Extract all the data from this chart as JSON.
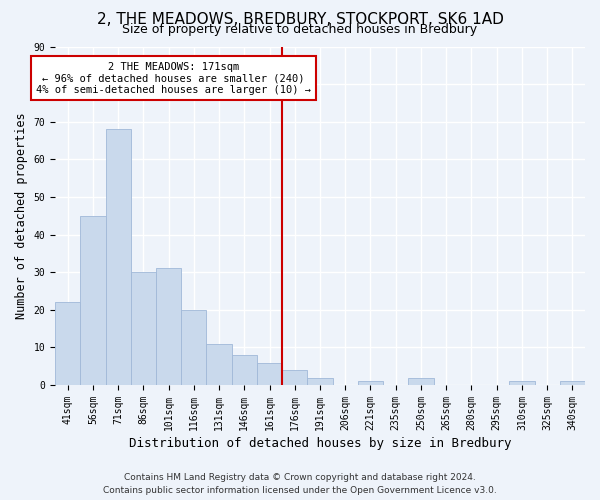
{
  "title": "2, THE MEADOWS, BREDBURY, STOCKPORT, SK6 1AD",
  "subtitle": "Size of property relative to detached houses in Bredbury",
  "xlabel": "Distribution of detached houses by size in Bredbury",
  "ylabel": "Number of detached properties",
  "bar_labels": [
    "41sqm",
    "56sqm",
    "71sqm",
    "86sqm",
    "101sqm",
    "116sqm",
    "131sqm",
    "146sqm",
    "161sqm",
    "176sqm",
    "191sqm",
    "206sqm",
    "221sqm",
    "235sqm",
    "250sqm",
    "265sqm",
    "280sqm",
    "295sqm",
    "310sqm",
    "325sqm",
    "340sqm"
  ],
  "bar_values": [
    22,
    45,
    68,
    30,
    31,
    20,
    11,
    8,
    6,
    4,
    2,
    0,
    1,
    0,
    2,
    0,
    0,
    0,
    1,
    0,
    1
  ],
  "bar_color": "#c9d9ec",
  "bar_edge_color": "#a0b8d8",
  "vline_color": "#cc0000",
  "annotation_title": "2 THE MEADOWS: 171sqm",
  "annotation_line1": "← 96% of detached houses are smaller (240)",
  "annotation_line2": "4% of semi-detached houses are larger (10) →",
  "annotation_box_color": "#ffffff",
  "annotation_box_edge": "#cc0000",
  "ylim": [
    0,
    90
  ],
  "yticks": [
    0,
    10,
    20,
    30,
    40,
    50,
    60,
    70,
    80,
    90
  ],
  "footer1": "Contains HM Land Registry data © Crown copyright and database right 2024.",
  "footer2": "Contains public sector information licensed under the Open Government Licence v3.0.",
  "bg_color": "#eef3fa",
  "plot_bg_color": "#eef3fa",
  "grid_color": "#ffffff",
  "title_fontsize": 11,
  "subtitle_fontsize": 9,
  "tick_fontsize": 7,
  "ylabel_fontsize": 8.5,
  "xlabel_fontsize": 9,
  "footer_fontsize": 6.5
}
